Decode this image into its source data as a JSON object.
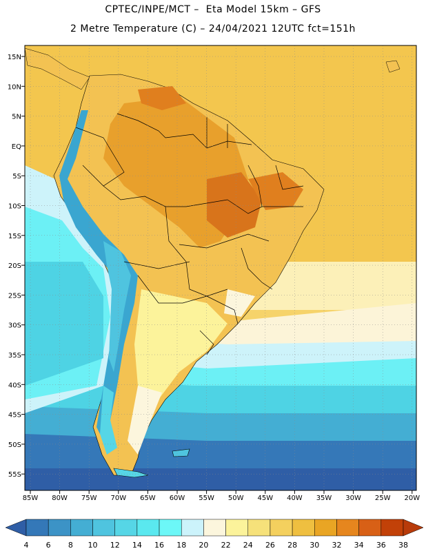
{
  "header": {
    "line1": "CPTEC/INPE/MCT –  Eta Model 15km – GFS",
    "line2": "2 Metre Temperature (C) – 24/04/2021 12UTC fct=151h"
  },
  "map": {
    "lat_labels": [
      "15N",
      "10N",
      "5N",
      "EQ",
      "5S",
      "10S",
      "15S",
      "20S",
      "25S",
      "30S",
      "35S",
      "40S",
      "45S",
      "50S",
      "55S"
    ],
    "lon_labels": [
      "85W",
      "80W",
      "75W",
      "70W",
      "65W",
      "60W",
      "55W",
      "50W",
      "45W",
      "40W",
      "35W",
      "30W",
      "25W",
      "20W"
    ],
    "colors": {
      "land_warm": "#f3c252",
      "land_hot": "#e69722",
      "land_hottest": "#d8741b",
      "ocean_warm": "#f7dd85",
      "ocean_cool": "#4ed4e6",
      "ocean_cold": "#2d7ebf",
      "ocean_coldest": "#2f5fa8",
      "mountain_cold": "#3aa6d0",
      "border": "#000000",
      "grid": "#8a8a8a"
    }
  },
  "colorbar": {
    "labels": [
      "4",
      "6",
      "8",
      "10",
      "12",
      "14",
      "16",
      "18",
      "20",
      "22",
      "24",
      "26",
      "28",
      "30",
      "32",
      "34",
      "36",
      "38"
    ],
    "colors": [
      "#2f5ea6",
      "#3478b8",
      "#3c93c6",
      "#44aed3",
      "#4fc4df",
      "#56d6e6",
      "#5ae8ef",
      "#6cf7f7",
      "#ccf3fb",
      "#fcf6dd",
      "#fcf39b",
      "#f6e17a",
      "#f4d05e",
      "#efbf40",
      "#e9a524",
      "#e6861e",
      "#d86016",
      "#c24108",
      "#b83b0a"
    ]
  }
}
